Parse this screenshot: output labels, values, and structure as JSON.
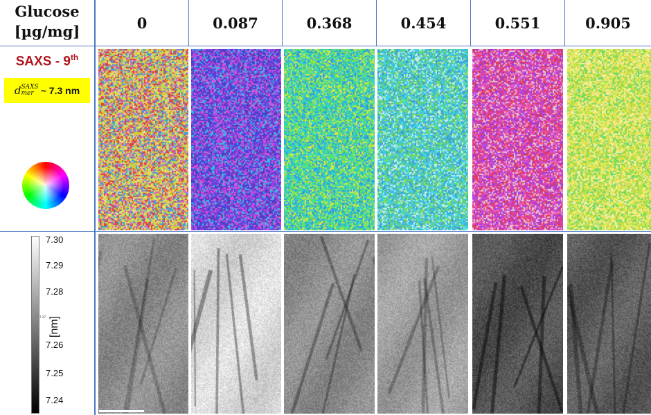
{
  "header": {
    "row_label_line1": "Glucose",
    "row_label_line2": "[µg/mg]",
    "columns": [
      "0",
      "0.087",
      "0.368",
      "0.454",
      "0.551",
      "0.905"
    ]
  },
  "saxs_label": {
    "text": "SAXS - 9",
    "superscript": "th",
    "color": "#b0141c"
  },
  "d_spacing": {
    "symbol": "d",
    "superscript": "SAXS",
    "subscript": "mer",
    "text": " ~ 7.3 nm",
    "highlight": "#ffff00"
  },
  "colorbar": {
    "ticks": [
      "7.30",
      "7.29",
      "7.28",
      "7.27",
      "7.26",
      "7.25",
      "7.24"
    ],
    "unit": "[nm]",
    "tiny_label": "7.27"
  },
  "orientation_maps": [
    {
      "palette": [
        "#d9c43a",
        "#e23c3c",
        "#c4d84a",
        "#3da0d8",
        "#e6e07a",
        "#d46acb"
      ],
      "base": "#d8b54a"
    },
    {
      "palette": [
        "#6b3fd8",
        "#3c48e6",
        "#a84fe0",
        "#e04ad8",
        "#3eb8e2",
        "#5a36b8"
      ],
      "base": "#5a4ad0"
    },
    {
      "palette": [
        "#3fd8c2",
        "#4ae27a",
        "#2f9ce0",
        "#7ae24a",
        "#d8e64a",
        "#2ec4d8"
      ],
      "base": "#3cc8b8"
    },
    {
      "palette": [
        "#3ad8e8",
        "#4ac0e8",
        "#3a9cd8",
        "#7adf5a",
        "#56c88a",
        "#c4f0f0"
      ],
      "base": "#52c8d0"
    },
    {
      "palette": [
        "#e03c9a",
        "#e23c4a",
        "#c64ae0",
        "#f06ab8",
        "#e4c8d8",
        "#9a3ce0"
      ],
      "base": "#d84a9a"
    },
    {
      "palette": [
        "#d8e83a",
        "#9ae04a",
        "#f0e87a",
        "#e8d84a",
        "#6ad86a",
        "#f4f0b0"
      ],
      "base": "#c8dc4a"
    }
  ],
  "dspacing_maps": [
    {
      "shade": 0.55,
      "streaks": 0.2
    },
    {
      "shade": 0.85,
      "streaks": 0.35
    },
    {
      "shade": 0.55,
      "streaks": 0.3
    },
    {
      "shade": 0.62,
      "streaks": 0.25
    },
    {
      "shade": 0.32,
      "streaks": 0.45
    },
    {
      "shade": 0.36,
      "streaks": 0.3
    }
  ]
}
